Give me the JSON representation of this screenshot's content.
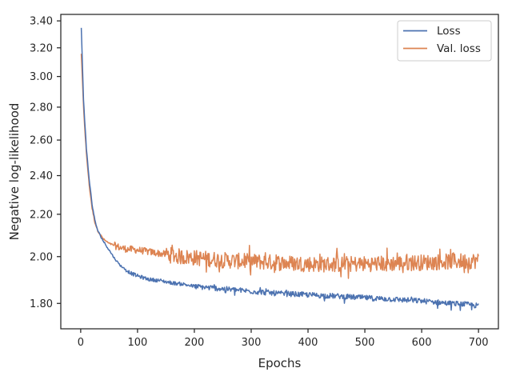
{
  "chart_data": {
    "type": "line",
    "xlabel": "Epochs",
    "ylabel": "Negative log-likelihood",
    "xlim": [
      -35,
      735
    ],
    "ylim": [
      1.7,
      3.45
    ],
    "y_scale": "log",
    "grid": false,
    "legend_position": "top-right",
    "x_ticks": [
      0,
      100,
      200,
      300,
      400,
      500,
      600,
      700
    ],
    "x_tick_labels": [
      "0",
      "100",
      "200",
      "300",
      "400",
      "500",
      "600",
      "700"
    ],
    "y_ticks": [
      1.8,
      2.0,
      2.2,
      2.4,
      2.6,
      2.8,
      3.0,
      3.2,
      3.4
    ],
    "y_tick_labels": [
      "1.80",
      "2.00",
      "2.20",
      "2.40",
      "2.60",
      "2.80",
      "3.00",
      "3.20",
      "3.40"
    ],
    "series": [
      {
        "name": "Loss",
        "color": "#4c72b0",
        "x": [
          1,
          5,
          10,
          15,
          20,
          25,
          30,
          40,
          50,
          60,
          70,
          80,
          90,
          100,
          120,
          140,
          160,
          180,
          200,
          225,
          250,
          275,
          300,
          325,
          350,
          375,
          400,
          425,
          450,
          475,
          500,
          525,
          550,
          575,
          600,
          625,
          650,
          675,
          700
        ],
        "y": [
          3.35,
          2.85,
          2.55,
          2.38,
          2.25,
          2.17,
          2.12,
          2.07,
          2.03,
          1.99,
          1.96,
          1.94,
          1.925,
          1.915,
          1.9,
          1.895,
          1.885,
          1.88,
          1.87,
          1.865,
          1.86,
          1.855,
          1.85,
          1.845,
          1.84,
          1.838,
          1.835,
          1.832,
          1.83,
          1.826,
          1.823,
          1.82,
          1.817,
          1.813,
          1.81,
          1.805,
          1.8,
          1.797,
          1.79
        ]
      },
      {
        "name": "Val. loss",
        "color": "#dd8452",
        "x": [
          1,
          5,
          10,
          15,
          20,
          25,
          30,
          40,
          50,
          60,
          70,
          80,
          100,
          125,
          150,
          175,
          200,
          225,
          250,
          275,
          300,
          325,
          350,
          375,
          400,
          425,
          450,
          475,
          500,
          525,
          550,
          575,
          600,
          625,
          650,
          675,
          700
        ],
        "y": [
          3.16,
          2.8,
          2.52,
          2.35,
          2.23,
          2.16,
          2.12,
          2.08,
          2.06,
          2.05,
          2.04,
          2.035,
          2.03,
          2.02,
          2.01,
          2.0,
          1.995,
          1.99,
          1.985,
          1.98,
          1.978,
          1.976,
          1.973,
          1.97,
          1.968,
          1.966,
          1.966,
          1.967,
          1.968,
          1.969,
          1.97,
          1.972,
          1.974,
          1.976,
          1.978,
          1.98,
          1.982
        ]
      }
    ]
  }
}
